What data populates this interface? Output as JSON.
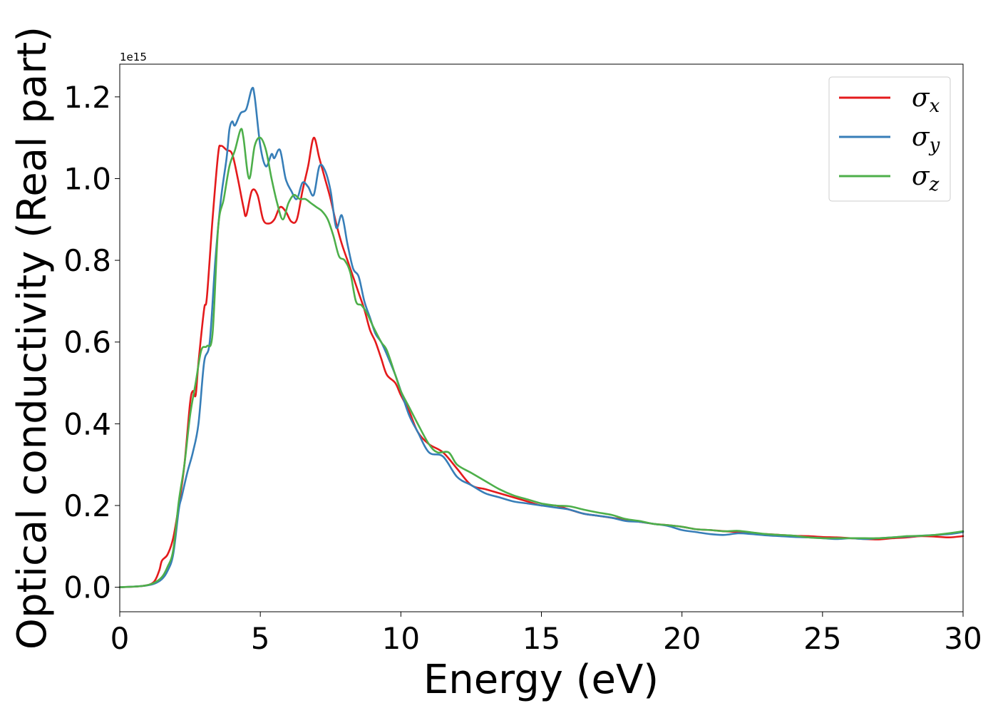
{
  "chart_data": {
    "type": "line",
    "xlabel": "Energy (eV)",
    "ylabel": "Optical conductivity (Real part)",
    "y_offset_text": "1e15",
    "y_scale": 1000000000000000.0,
    "xlim": [
      0,
      30
    ],
    "ylim": [
      -0.06,
      1.28
    ],
    "x_ticks": [
      0,
      5,
      10,
      15,
      20,
      25,
      30
    ],
    "x_tick_labels": [
      "0",
      "5",
      "10",
      "15",
      "20",
      "25",
      "30"
    ],
    "y_ticks": [
      0.0,
      0.2,
      0.4,
      0.6,
      0.8,
      1.0,
      1.2
    ],
    "y_tick_labels": [
      "0.0",
      "0.2",
      "0.4",
      "0.6",
      "0.8",
      "1.0",
      "1.2"
    ],
    "grid": false,
    "legend": {
      "placement": "top-right"
    },
    "series": [
      {
        "name": "σx",
        "symbol": "σ",
        "subscript": "x",
        "color": "#e41a1c",
        "points": [
          [
            0,
            0
          ],
          [
            0.8,
            0.003
          ],
          [
            1.2,
            0.012
          ],
          [
            1.4,
            0.04
          ],
          [
            1.5,
            0.065
          ],
          [
            1.7,
            0.08
          ],
          [
            1.9,
            0.12
          ],
          [
            2.1,
            0.2
          ],
          [
            2.3,
            0.3
          ],
          [
            2.5,
            0.45
          ],
          [
            2.6,
            0.48
          ],
          [
            2.7,
            0.47
          ],
          [
            2.8,
            0.55
          ],
          [
            3.0,
            0.68
          ],
          [
            3.1,
            0.71
          ],
          [
            3.3,
            0.9
          ],
          [
            3.5,
            1.06
          ],
          [
            3.6,
            1.08
          ],
          [
            3.8,
            1.07
          ],
          [
            4.0,
            1.06
          ],
          [
            4.2,
            1.0
          ],
          [
            4.4,
            0.93
          ],
          [
            4.5,
            0.91
          ],
          [
            4.7,
            0.97
          ],
          [
            4.9,
            0.96
          ],
          [
            5.1,
            0.9
          ],
          [
            5.3,
            0.89
          ],
          [
            5.5,
            0.9
          ],
          [
            5.7,
            0.93
          ],
          [
            5.9,
            0.92
          ],
          [
            6.1,
            0.895
          ],
          [
            6.3,
            0.9
          ],
          [
            6.5,
            0.97
          ],
          [
            6.7,
            1.03
          ],
          [
            6.9,
            1.1
          ],
          [
            7.1,
            1.05
          ],
          [
            7.3,
            1.0
          ],
          [
            7.5,
            0.95
          ],
          [
            7.7,
            0.89
          ],
          [
            7.9,
            0.84
          ],
          [
            8.1,
            0.8
          ],
          [
            8.3,
            0.76
          ],
          [
            8.5,
            0.72
          ],
          [
            8.7,
            0.68
          ],
          [
            8.9,
            0.63
          ],
          [
            9.1,
            0.6
          ],
          [
            9.3,
            0.56
          ],
          [
            9.5,
            0.52
          ],
          [
            9.8,
            0.5
          ],
          [
            10.0,
            0.47
          ],
          [
            10.3,
            0.43
          ],
          [
            10.6,
            0.38
          ],
          [
            11.0,
            0.35
          ],
          [
            11.5,
            0.33
          ],
          [
            12.0,
            0.29
          ],
          [
            12.5,
            0.25
          ],
          [
            13.0,
            0.24
          ],
          [
            13.5,
            0.23
          ],
          [
            14.0,
            0.22
          ],
          [
            14.5,
            0.21
          ],
          [
            15.0,
            0.2
          ],
          [
            15.5,
            0.2
          ],
          [
            16.0,
            0.19
          ],
          [
            16.5,
            0.18
          ],
          [
            17.0,
            0.175
          ],
          [
            17.5,
            0.17
          ],
          [
            18.0,
            0.165
          ],
          [
            18.5,
            0.16
          ],
          [
            19.0,
            0.155
          ],
          [
            19.5,
            0.152
          ],
          [
            20.0,
            0.148
          ],
          [
            20.5,
            0.142
          ],
          [
            21.0,
            0.14
          ],
          [
            21.5,
            0.137
          ],
          [
            22.0,
            0.135
          ],
          [
            22.5,
            0.132
          ],
          [
            23.0,
            0.13
          ],
          [
            23.5,
            0.128
          ],
          [
            24.0,
            0.126
          ],
          [
            24.5,
            0.125
          ],
          [
            25.0,
            0.123
          ],
          [
            25.5,
            0.122
          ],
          [
            26.0,
            0.12
          ],
          [
            26.5,
            0.118
          ],
          [
            27.0,
            0.117
          ],
          [
            27.5,
            0.12
          ],
          [
            28.0,
            0.122
          ],
          [
            28.5,
            0.125
          ],
          [
            29.0,
            0.124
          ],
          [
            29.5,
            0.122
          ],
          [
            30.0,
            0.125
          ]
        ]
      },
      {
        "name": "σy",
        "symbol": "σ",
        "subscript": "y",
        "color": "#377eb8",
        "points": [
          [
            0,
            0
          ],
          [
            0.8,
            0.003
          ],
          [
            1.2,
            0.008
          ],
          [
            1.5,
            0.02
          ],
          [
            1.7,
            0.04
          ],
          [
            1.9,
            0.08
          ],
          [
            2.1,
            0.19
          ],
          [
            2.2,
            0.22
          ],
          [
            2.4,
            0.28
          ],
          [
            2.6,
            0.33
          ],
          [
            2.8,
            0.4
          ],
          [
            3.0,
            0.55
          ],
          [
            3.2,
            0.6
          ],
          [
            3.4,
            0.8
          ],
          [
            3.6,
            0.95
          ],
          [
            3.8,
            1.05
          ],
          [
            3.9,
            1.12
          ],
          [
            4.0,
            1.14
          ],
          [
            4.1,
            1.13
          ],
          [
            4.3,
            1.16
          ],
          [
            4.5,
            1.17
          ],
          [
            4.7,
            1.22
          ],
          [
            4.8,
            1.2
          ],
          [
            5.0,
            1.08
          ],
          [
            5.2,
            1.03
          ],
          [
            5.4,
            1.06
          ],
          [
            5.5,
            1.05
          ],
          [
            5.7,
            1.07
          ],
          [
            5.9,
            1.0
          ],
          [
            6.1,
            0.97
          ],
          [
            6.3,
            0.95
          ],
          [
            6.5,
            0.99
          ],
          [
            6.7,
            0.98
          ],
          [
            6.9,
            0.96
          ],
          [
            7.1,
            1.03
          ],
          [
            7.3,
            1.02
          ],
          [
            7.5,
            0.97
          ],
          [
            7.7,
            0.88
          ],
          [
            7.9,
            0.91
          ],
          [
            8.1,
            0.84
          ],
          [
            8.3,
            0.78
          ],
          [
            8.5,
            0.76
          ],
          [
            8.7,
            0.7
          ],
          [
            8.9,
            0.66
          ],
          [
            9.1,
            0.62
          ],
          [
            9.3,
            0.6
          ],
          [
            9.5,
            0.57
          ],
          [
            9.8,
            0.52
          ],
          [
            10.0,
            0.48
          ],
          [
            10.3,
            0.42
          ],
          [
            10.6,
            0.38
          ],
          [
            11.0,
            0.33
          ],
          [
            11.5,
            0.32
          ],
          [
            12.0,
            0.27
          ],
          [
            12.5,
            0.25
          ],
          [
            13.0,
            0.23
          ],
          [
            13.5,
            0.22
          ],
          [
            14.0,
            0.21
          ],
          [
            14.5,
            0.205
          ],
          [
            15.0,
            0.2
          ],
          [
            15.5,
            0.195
          ],
          [
            16.0,
            0.19
          ],
          [
            16.5,
            0.18
          ],
          [
            17.0,
            0.175
          ],
          [
            17.5,
            0.17
          ],
          [
            18.0,
            0.162
          ],
          [
            18.5,
            0.16
          ],
          [
            19.0,
            0.155
          ],
          [
            19.5,
            0.15
          ],
          [
            20.0,
            0.14
          ],
          [
            20.5,
            0.135
          ],
          [
            21.0,
            0.13
          ],
          [
            21.5,
            0.128
          ],
          [
            22.0,
            0.132
          ],
          [
            22.5,
            0.13
          ],
          [
            23.0,
            0.127
          ],
          [
            23.5,
            0.125
          ],
          [
            24.0,
            0.123
          ],
          [
            24.5,
            0.122
          ],
          [
            25.0,
            0.12
          ],
          [
            25.5,
            0.118
          ],
          [
            26.0,
            0.12
          ],
          [
            26.5,
            0.118
          ],
          [
            27.0,
            0.12
          ],
          [
            27.5,
            0.122
          ],
          [
            28.0,
            0.124
          ],
          [
            28.5,
            0.126
          ],
          [
            29.0,
            0.128
          ],
          [
            29.5,
            0.13
          ],
          [
            30.0,
            0.135
          ]
        ]
      },
      {
        "name": "σz",
        "symbol": "σ",
        "subscript": "z",
        "color": "#4daf4a",
        "points": [
          [
            0,
            0
          ],
          [
            0.8,
            0.003
          ],
          [
            1.2,
            0.01
          ],
          [
            1.5,
            0.025
          ],
          [
            1.7,
            0.05
          ],
          [
            1.9,
            0.09
          ],
          [
            2.1,
            0.21
          ],
          [
            2.3,
            0.3
          ],
          [
            2.5,
            0.42
          ],
          [
            2.7,
            0.5
          ],
          [
            2.9,
            0.58
          ],
          [
            3.1,
            0.59
          ],
          [
            3.3,
            0.62
          ],
          [
            3.5,
            0.88
          ],
          [
            3.7,
            0.95
          ],
          [
            3.9,
            1.03
          ],
          [
            4.1,
            1.07
          ],
          [
            4.3,
            1.12
          ],
          [
            4.4,
            1.1
          ],
          [
            4.6,
            1.0
          ],
          [
            4.8,
            1.08
          ],
          [
            5.0,
            1.1
          ],
          [
            5.2,
            1.07
          ],
          [
            5.4,
            1.0
          ],
          [
            5.6,
            0.94
          ],
          [
            5.8,
            0.9
          ],
          [
            6.0,
            0.94
          ],
          [
            6.2,
            0.96
          ],
          [
            6.4,
            0.95
          ],
          [
            6.6,
            0.95
          ],
          [
            6.8,
            0.94
          ],
          [
            7.0,
            0.93
          ],
          [
            7.2,
            0.92
          ],
          [
            7.4,
            0.9
          ],
          [
            7.6,
            0.86
          ],
          [
            7.8,
            0.81
          ],
          [
            8.0,
            0.8
          ],
          [
            8.2,
            0.77
          ],
          [
            8.4,
            0.7
          ],
          [
            8.6,
            0.69
          ],
          [
            8.8,
            0.67
          ],
          [
            9.0,
            0.64
          ],
          [
            9.3,
            0.6
          ],
          [
            9.5,
            0.58
          ],
          [
            9.8,
            0.52
          ],
          [
            10.0,
            0.48
          ],
          [
            10.3,
            0.44
          ],
          [
            10.6,
            0.4
          ],
          [
            11.0,
            0.35
          ],
          [
            11.3,
            0.33
          ],
          [
            11.7,
            0.33
          ],
          [
            12.0,
            0.3
          ],
          [
            12.5,
            0.28
          ],
          [
            13.0,
            0.26
          ],
          [
            13.5,
            0.24
          ],
          [
            14.0,
            0.225
          ],
          [
            14.5,
            0.215
          ],
          [
            15.0,
            0.205
          ],
          [
            15.5,
            0.2
          ],
          [
            16.0,
            0.198
          ],
          [
            16.5,
            0.19
          ],
          [
            17.0,
            0.183
          ],
          [
            17.5,
            0.177
          ],
          [
            18.0,
            0.167
          ],
          [
            18.5,
            0.162
          ],
          [
            19.0,
            0.155
          ],
          [
            19.5,
            0.152
          ],
          [
            20.0,
            0.148
          ],
          [
            20.5,
            0.142
          ],
          [
            21.0,
            0.14
          ],
          [
            21.5,
            0.137
          ],
          [
            22.0,
            0.138
          ],
          [
            22.5,
            0.134
          ],
          [
            23.0,
            0.13
          ],
          [
            23.5,
            0.128
          ],
          [
            24.0,
            0.126
          ],
          [
            24.5,
            0.122
          ],
          [
            25.0,
            0.12
          ],
          [
            25.5,
            0.12
          ],
          [
            26.0,
            0.12
          ],
          [
            26.5,
            0.12
          ],
          [
            27.0,
            0.12
          ],
          [
            27.5,
            0.122
          ],
          [
            28.0,
            0.125
          ],
          [
            28.5,
            0.126
          ],
          [
            29.0,
            0.128
          ],
          [
            29.5,
            0.132
          ],
          [
            30.0,
            0.137
          ]
        ]
      }
    ]
  }
}
